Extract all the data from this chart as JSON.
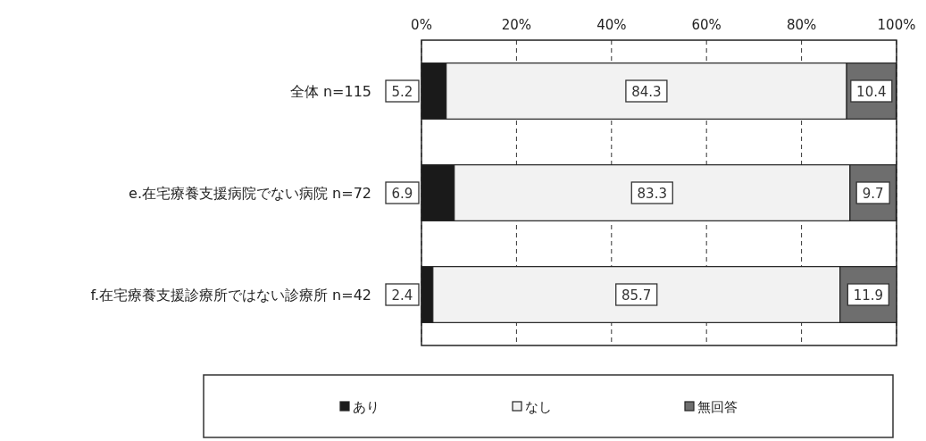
{
  "chart_data": {
    "type": "bar",
    "orientation": "horizontal",
    "stacked": true,
    "categories": [
      "全体  n=115",
      "e.在宅療養支援病院でない病院  n=72",
      "f.在宅療養支援診療所ではない診療所  n=42"
    ],
    "series": [
      {
        "name": "あり",
        "color": "#1a1a1a",
        "values": [
          5.2,
          6.9,
          2.4
        ]
      },
      {
        "name": "なし",
        "color": "#f2f2f2",
        "values": [
          84.3,
          83.3,
          85.7
        ]
      },
      {
        "name": "無回答",
        "color": "#6e6e6e",
        "values": [
          10.4,
          9.7,
          11.9
        ]
      }
    ],
    "xlim": [
      0,
      100
    ],
    "xticks": [
      {
        "value": 0,
        "label": "0%"
      },
      {
        "value": 20,
        "label": "20%"
      },
      {
        "value": 40,
        "label": "40%"
      },
      {
        "value": 60,
        "label": "60%"
      },
      {
        "value": 80,
        "label": "80%"
      },
      {
        "value": 100,
        "label": "100%"
      }
    ],
    "grid": "x",
    "data_labels": true,
    "legend": "bottom"
  }
}
